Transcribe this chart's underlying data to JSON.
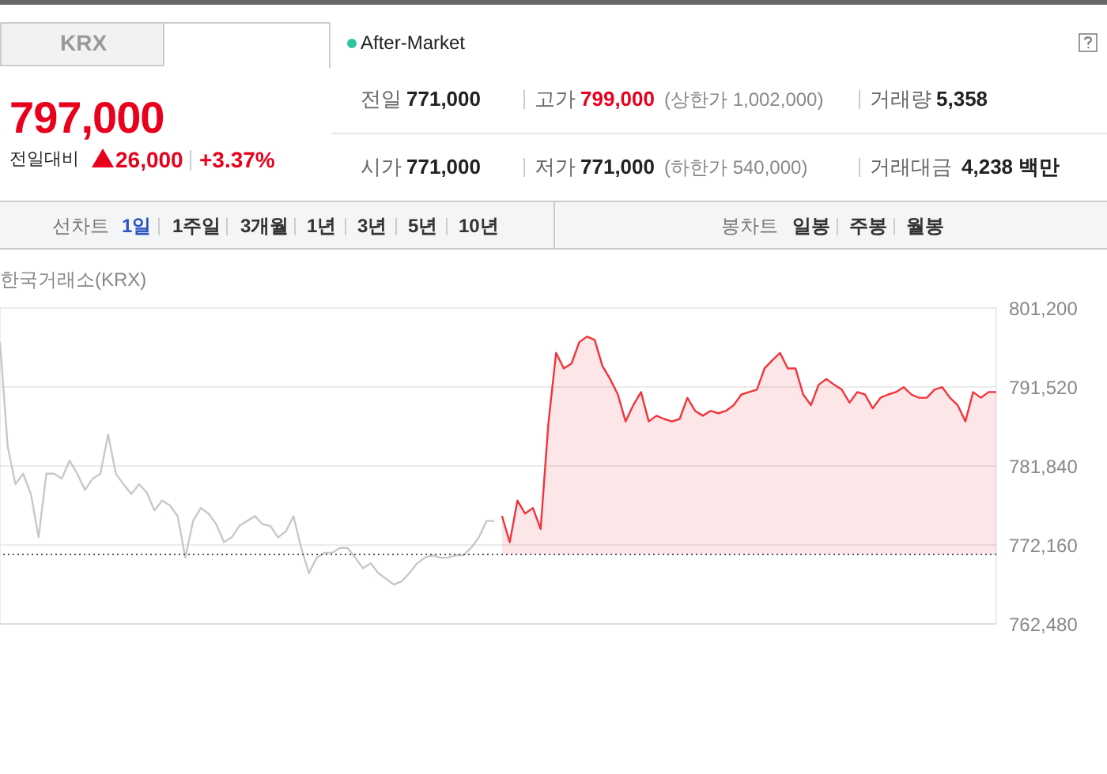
{
  "chart_data": {
    "type": "line",
    "title": "한국거래소(KRX)",
    "categories": [
      null,
      null,
      null,
      null,
      null,
      null,
      null,
      null,
      null,
      null,
      null,
      null,
      null,
      null,
      null,
      null,
      null,
      null,
      null,
      null,
      null,
      null,
      null,
      null,
      null,
      null,
      null,
      null,
      null,
      null,
      null,
      null,
      null,
      null,
      null,
      null,
      null,
      null,
      null,
      null,
      null,
      null,
      null,
      null,
      null,
      null,
      null,
      null,
      null,
      null,
      null,
      null,
      null,
      null,
      null,
      null,
      null,
      null,
      null,
      null,
      null,
      null,
      null,
      null,
      null,
      null,
      null,
      null,
      null,
      null,
      null,
      null,
      null,
      null,
      null,
      null,
      null,
      null,
      null,
      null,
      null,
      null,
      null,
      null,
      null,
      null,
      null,
      null,
      null,
      null,
      null,
      null,
      null,
      null,
      null,
      null,
      null,
      null,
      null,
      null,
      null,
      null,
      null,
      null,
      null,
      null,
      null,
      null,
      null,
      null,
      null,
      null,
      null,
      null,
      null,
      null,
      null,
      null,
      null,
      null,
      null,
      null,
      null,
      null,
      null,
      null,
      null,
      null,
      null,
      null
    ],
    "series": [
      {
        "type": "line",
        "color": "#c6c8cd",
        "values": [
          797000,
          784200,
          779600,
          780900,
          778400,
          773100,
          780900,
          780900,
          780300,
          782500,
          780900,
          778900,
          780300,
          780900,
          785700,
          780900,
          779600,
          778400,
          779600,
          778600,
          776400,
          777600,
          777000,
          775700,
          770600,
          775100,
          776700,
          776000,
          774700,
          772500,
          773100,
          774500,
          775100,
          775700,
          774700,
          774500,
          773100,
          773800,
          775700,
          771800,
          768700,
          770600,
          771200,
          771200,
          771800,
          771800,
          770600,
          769300,
          769900,
          768700,
          768000,
          767300,
          767700,
          768700,
          769900,
          770600,
          770900,
          770600,
          770600,
          770900,
          770900,
          771800,
          773100,
          775100,
          775100,
          null,
          null,
          null,
          null,
          null,
          null,
          null,
          null,
          null,
          null,
          null,
          null,
          null,
          null,
          null,
          null,
          null,
          null,
          null,
          null,
          null,
          null,
          null,
          null,
          null,
          null,
          null,
          null,
          null,
          null,
          null,
          null,
          null,
          null,
          null,
          null,
          null,
          null,
          null,
          null,
          null,
          null,
          null,
          null,
          null,
          null,
          null,
          null,
          null,
          null,
          null,
          null,
          null,
          null,
          null,
          null,
          null,
          null,
          null,
          null,
          null,
          null,
          null,
          null,
          null
        ]
      },
      {
        "type": "area",
        "color": "#f2333b",
        "values": [
          null,
          null,
          null,
          null,
          null,
          null,
          null,
          null,
          null,
          null,
          null,
          null,
          null,
          null,
          null,
          null,
          null,
          null,
          null,
          null,
          null,
          null,
          null,
          null,
          null,
          null,
          null,
          null,
          null,
          null,
          null,
          null,
          null,
          null,
          null,
          null,
          null,
          null,
          null,
          null,
          null,
          null,
          null,
          null,
          null,
          null,
          null,
          null,
          null,
          null,
          null,
          null,
          null,
          null,
          null,
          null,
          null,
          null,
          null,
          null,
          null,
          null,
          null,
          null,
          null,
          775700,
          772500,
          777600,
          776000,
          776700,
          774100,
          787000,
          795700,
          793800,
          794400,
          797000,
          797700,
          797300,
          794100,
          792500,
          790600,
          787300,
          789300,
          790900,
          787300,
          788000,
          787600,
          787300,
          787600,
          790200,
          788600,
          788000,
          788600,
          788300,
          788600,
          789300,
          790600,
          790900,
          791200,
          793800,
          794800,
          795700,
          793800,
          793800,
          790600,
          789300,
          791800,
          792500,
          791800,
          791200,
          789600,
          790900,
          790600,
          788900,
          790200,
          790600,
          790900,
          791500,
          790600,
          790200,
          790200,
          791200,
          791500,
          790200,
          789300,
          787300,
          790900,
          790200,
          790900,
          790900
        ]
      }
    ],
    "ylim": [
      762480,
      801200
    ],
    "yticks": [
      {
        "value": 762480,
        "label": "762,480"
      },
      {
        "value": 772160,
        "label": "772,160"
      },
      {
        "value": 781840,
        "label": "781,840"
      },
      {
        "value": 791520,
        "label": "791,520"
      },
      {
        "value": 801200,
        "label": "801,200"
      }
    ],
    "grid": true,
    "tick_labels": "y",
    "ref_lines": [
      {
        "axis": "y",
        "value": 771000,
        "color": "#555555",
        "line_style": "dotted"
      }
    ],
    "annotations": [
      "KRX",
      "After-Market",
      "797,000",
      "전일대비",
      "26,000",
      "+3.37%",
      "전일",
      "771,000",
      "고가",
      "799,000",
      "(상한가 1,002,000)",
      "거래량",
      "5,358",
      "시가",
      "771,000",
      "저가",
      "771,000",
      "(하한가 540,000)",
      "거래대금",
      "4,238 백만",
      "선차트",
      "1일",
      "1주일",
      "3개월",
      "1년",
      "3년",
      "5년",
      "10년",
      "봉차트",
      "일봉",
      "주봉",
      "월봉"
    ]
  }
}
